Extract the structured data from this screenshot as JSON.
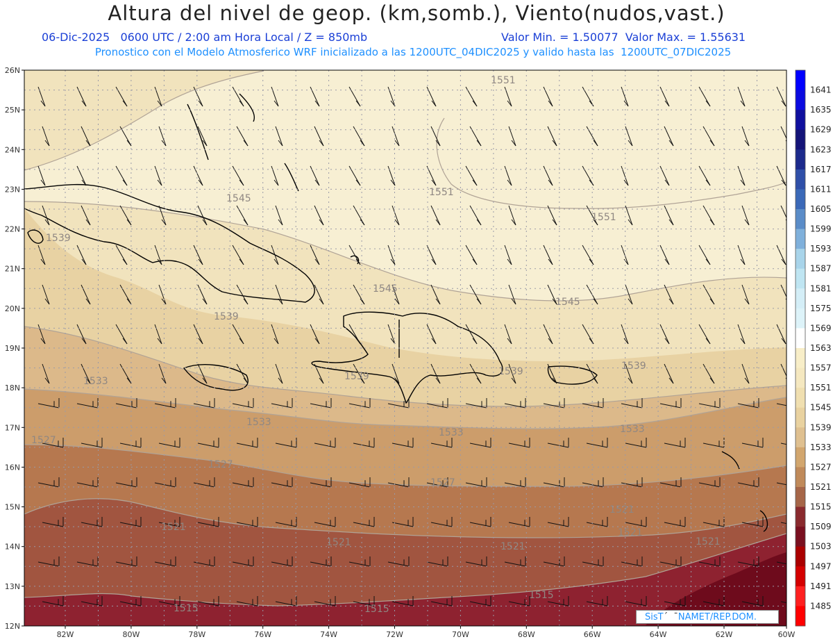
{
  "title": "Altura del nivel de geop. (km,somb.), Viento(nudos,vast.)",
  "subtitle_left": "06-Dic-2025   0600 UTC / 2:00 am Hora Local / Z = 850mb",
  "subtitle_right": "Valor Min. = 1.50077  Valor Max. = 1.55631",
  "subtitle_2": "Pronostico con el Modelo Atmosferico WRF inicializado a las 1200UTC_04DIC2025 y valido hasta las  1200UTC_07DIC2025",
  "credit_prefix": "SisT",
  "credit_suffix": "NAMET/REP.DOM.",
  "lat_labels": [
    "26N",
    "25N",
    "24N",
    "23N",
    "22N",
    "21N",
    "20N",
    "19N",
    "18N",
    "17N",
    "16N",
    "15N",
    "14N",
    "13N",
    "12N"
  ],
  "lon_labels": [
    "82W",
    "80W",
    "78W",
    "76W",
    "74W",
    "72W",
    "70W",
    "68W",
    "66W",
    "64W",
    "62W",
    "60W"
  ],
  "legend": {
    "levels": [
      "1641",
      "1635",
      "1629",
      "1623",
      "1617",
      "1611",
      "1605",
      "1599",
      "1593",
      "1587",
      "1581",
      "1575",
      "1569",
      "1563",
      "1557",
      "1551",
      "1545",
      "1539",
      "1533",
      "1527",
      "1521",
      "1515",
      "1509",
      "1503",
      "1497",
      "1491",
      "1485"
    ],
    "colors": [
      "#0000ff",
      "#0b0be0",
      "#10109e",
      "#141478",
      "#1c2a8c",
      "#2f4fa8",
      "#3b69b8",
      "#5a8cc8",
      "#7fb0db",
      "#a8d4ea",
      "#bfe5f2",
      "#d4eef7",
      "#ddf3f9",
      "#ffffff",
      "#f8eec8",
      "#f5e8c0",
      "#f0dfb0",
      "#e9d2a0",
      "#dfc090",
      "#d2a66e",
      "#c08a5a",
      "#a66648",
      "#8a2a2e",
      "#7a1020",
      "#aa0000",
      "#d40000",
      "#ff2020",
      "#ff0000"
    ]
  },
  "contour_labels": [
    "1551",
    "1551",
    "1551",
    "1545",
    "1545",
    "1545",
    "1539",
    "1539",
    "1539",
    "1539",
    "1539",
    "1533",
    "1533",
    "1533",
    "1533",
    "1527",
    "1527",
    "1527",
    "1521",
    "1521",
    "1521",
    "1521",
    "1521",
    "1515",
    "1515",
    "1515",
    "1521"
  ],
  "band_colors": {
    "b1551": "#f7efd3",
    "b1545": "#f1e3bd",
    "b1539": "#e8d2a3",
    "b1533": "#dcb98a",
    "b1527": "#cc9d6b",
    "b1521": "#b6784f",
    "b1515": "#a15540",
    "b1509": "#8e2230",
    "b1503": "#6e0b1c"
  }
}
